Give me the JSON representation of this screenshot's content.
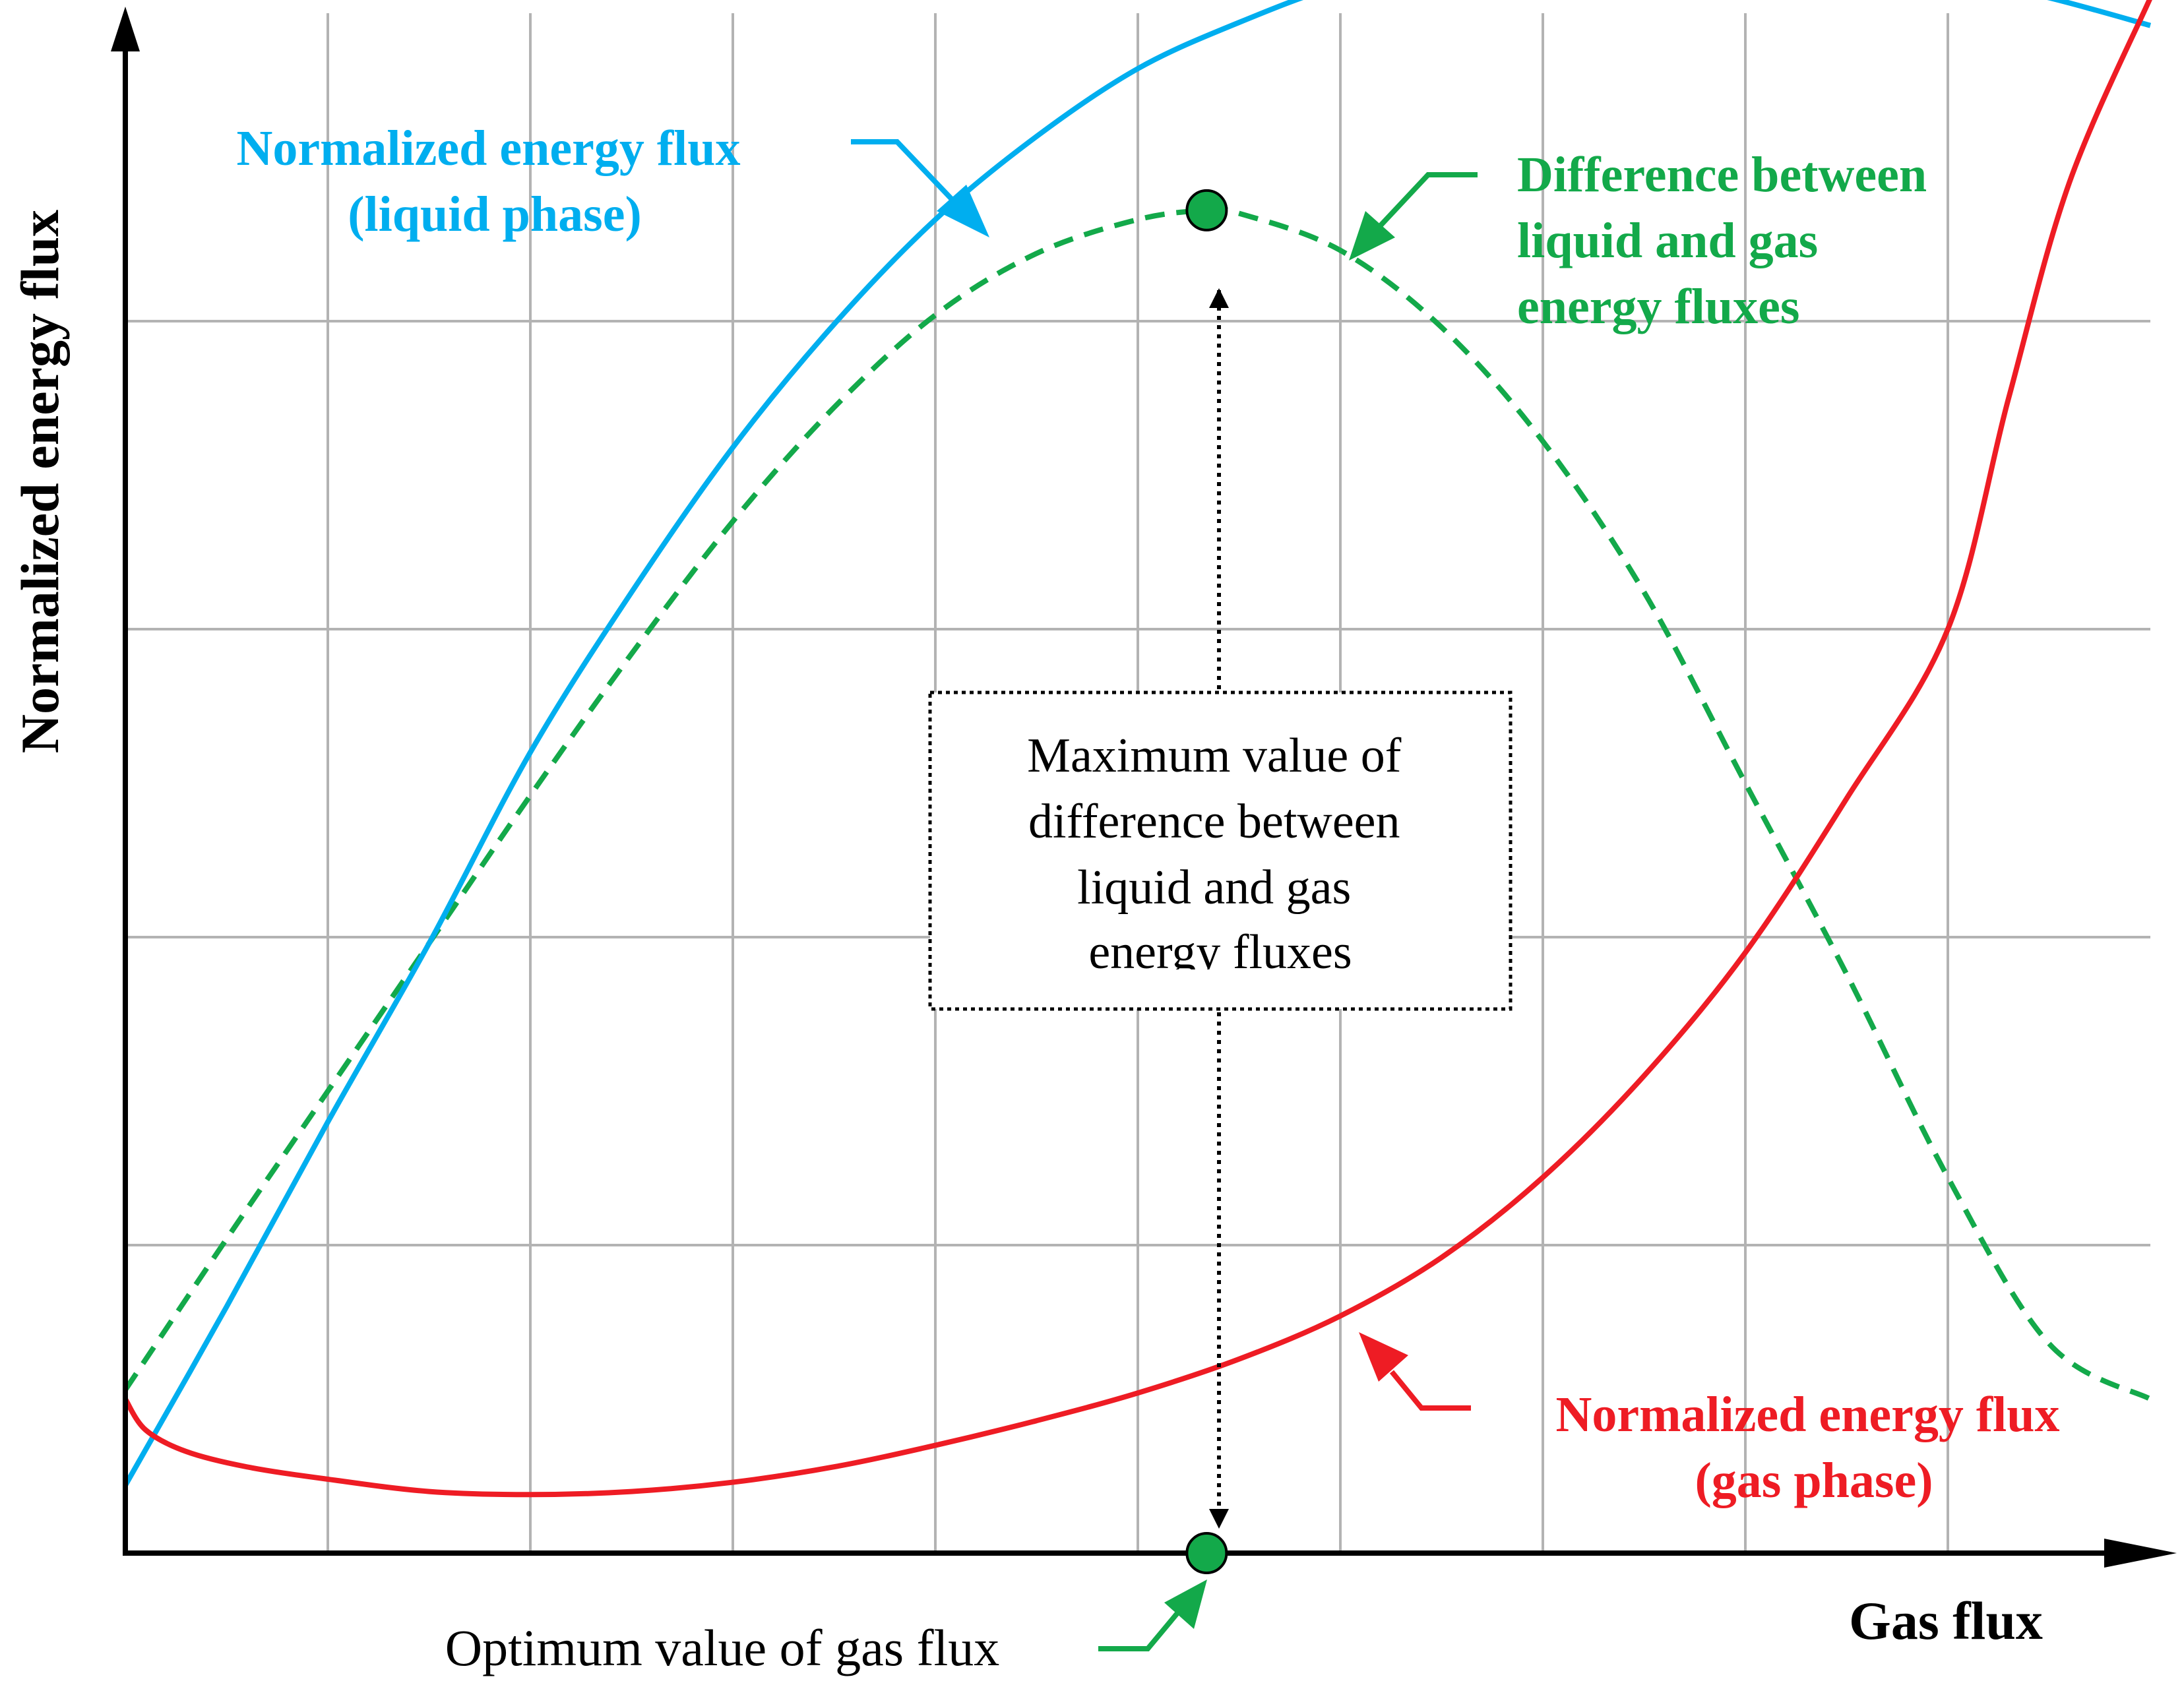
{
  "colors": {
    "liquid": "#00AEEF",
    "gas": "#EE1C24",
    "difference": "#13A94A",
    "grid": "#B3B3B3",
    "axis": "#000000"
  },
  "chart_data": {
    "type": "line",
    "title": "",
    "xlabel": "Gas flux",
    "ylabel": "Normalized energy flux",
    "xlim": [
      0,
      10
    ],
    "ylim": [
      0,
      5
    ],
    "grid": true,
    "x_gridlines": [
      1,
      2,
      3,
      4,
      5,
      6,
      7,
      8,
      9
    ],
    "y_gridlines": [
      1,
      2,
      3,
      4
    ],
    "series": [
      {
        "name": "Normalized energy flux (liquid phase)",
        "key": "liquid",
        "style": "solid",
        "x": [
          0,
          0.5,
          1.0,
          1.5,
          2.0,
          2.5,
          3.0,
          3.5,
          4.0,
          4.5,
          5.0,
          5.5,
          6.0,
          6.5,
          7.0,
          7.5,
          8.0,
          8.5,
          9.0,
          9.5,
          10.0
        ],
        "y": [
          0.22,
          0.8,
          1.4,
          1.98,
          2.6,
          3.12,
          3.59,
          3.99,
          4.33,
          4.6,
          4.82,
          4.97,
          5.09,
          5.15,
          5.2,
          5.22,
          5.21,
          5.17,
          5.12,
          5.05,
          4.96
        ]
      },
      {
        "name": "Normalized energy flux (gas phase)",
        "key": "gas",
        "style": "solid",
        "x": [
          0,
          0.1,
          0.3,
          0.6,
          1.0,
          1.5,
          2.0,
          2.5,
          3.0,
          3.5,
          4.0,
          4.5,
          5.0,
          5.5,
          6.0,
          6.5,
          7.0,
          7.5,
          8.0,
          8.5,
          9.0,
          9.3,
          9.6,
          10.0
        ],
        "y": [
          0.5,
          0.4,
          0.33,
          0.28,
          0.24,
          0.2,
          0.19,
          0.2,
          0.23,
          0.28,
          0.35,
          0.43,
          0.52,
          0.63,
          0.77,
          0.96,
          1.22,
          1.55,
          1.95,
          2.45,
          3.0,
          3.75,
          4.45,
          5.05
        ]
      },
      {
        "name": "Difference between liquid and gas energy fluxes",
        "key": "difference",
        "style": "dashed",
        "x": [
          0,
          0.5,
          1.0,
          1.5,
          2.0,
          2.5,
          3.0,
          3.5,
          4.0,
          4.5,
          5.0,
          5.34,
          5.5,
          6.0,
          6.5,
          7.0,
          7.5,
          8.0,
          8.5,
          9.0,
          9.5,
          10.0
        ],
        "y": [
          0.53,
          1.02,
          1.5,
          1.98,
          2.46,
          2.92,
          3.35,
          3.72,
          4.02,
          4.22,
          4.33,
          4.36,
          4.35,
          4.23,
          3.98,
          3.61,
          3.12,
          2.5,
          1.88,
          1.22,
          0.68,
          0.5
        ]
      }
    ],
    "optimum": {
      "x": 5.34,
      "y_max": 4.36,
      "y_axis": 0
    },
    "annotations": {
      "liquid_label": [
        "Normalized energy flux",
        "(liquid phase)"
      ],
      "gas_label": [
        "Normalized energy flux",
        "(gas phase)"
      ],
      "difference_label": [
        "Difference between",
        "liquid and gas",
        "energy fluxes"
      ],
      "max_box": [
        "Maximum value of",
        "difference between",
        "liquid and gas",
        "energy fluxes"
      ],
      "optimum_label": "Optimum value of gas flux"
    }
  }
}
